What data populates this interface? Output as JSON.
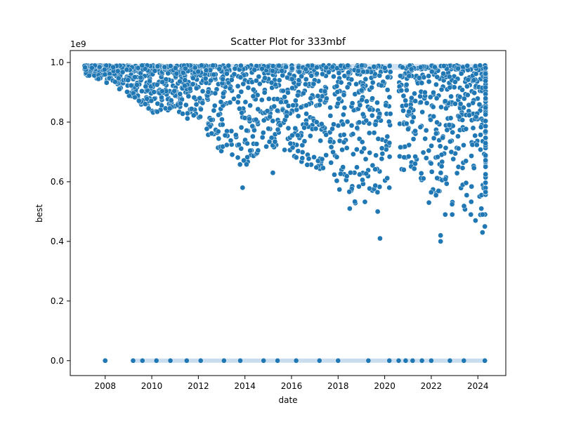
{
  "chart_data": {
    "type": "scatter",
    "title": "Scatter Plot for 333mbf",
    "xlabel": "date",
    "ylabel": "best",
    "y_scale_label": "1e9",
    "xlim": [
      2006.5,
      2025.2
    ],
    "ylim": [
      -50000000,
      1040000000
    ],
    "xticks": [
      2008,
      2010,
      2012,
      2014,
      2016,
      2018,
      2020,
      2022,
      2024
    ],
    "xtick_labels": [
      "2008",
      "2010",
      "2012",
      "2014",
      "2016",
      "2018",
      "2020",
      "2022",
      "2024"
    ],
    "yticks": [
      0,
      200000000,
      400000000,
      600000000,
      800000000,
      1000000000
    ],
    "ytick_labels": [
      "0.0",
      "0.2",
      "0.4",
      "0.6",
      "0.8",
      "1.0"
    ],
    "grid": false,
    "marker_color": "#1f77b4",
    "upper_band": [
      {
        "year": 2007.1,
        "low": 960000000
      },
      {
        "year": 2008,
        "low": 930000000
      },
      {
        "year": 2009,
        "low": 890000000
      },
      {
        "year": 2010,
        "low": 830000000
      },
      {
        "year": 2011,
        "low": 840000000
      },
      {
        "year": 2012,
        "low": 780000000
      },
      {
        "year": 2013,
        "low": 700000000
      },
      {
        "year": 2014,
        "low": 640000000
      },
      {
        "year": 2015,
        "low": 720000000
      },
      {
        "year": 2016,
        "low": 690000000
      },
      {
        "year": 2017,
        "low": 630000000
      },
      {
        "year": 2018,
        "low": 570000000
      },
      {
        "year": 2019,
        "low": 510000000
      },
      {
        "year": 2020,
        "low": 580000000
      },
      {
        "year": 2021,
        "low": 650000000
      },
      {
        "year": 2022,
        "low": 560000000
      },
      {
        "year": 2023,
        "low": 520000000
      },
      {
        "year": 2024,
        "low": 480000000
      }
    ],
    "outliers": [
      {
        "x": 2013.9,
        "y": 580000000
      },
      {
        "x": 2015.2,
        "y": 630000000
      },
      {
        "x": 2018.5,
        "y": 510000000
      },
      {
        "x": 2019.7,
        "y": 500000000
      },
      {
        "x": 2019.8,
        "y": 410000000
      },
      {
        "x": 2020.2,
        "y": 580000000
      },
      {
        "x": 2021.9,
        "y": 530000000
      },
      {
        "x": 2022.4,
        "y": 420000000
      },
      {
        "x": 2022.4,
        "y": 400000000
      },
      {
        "x": 2022.6,
        "y": 490000000
      },
      {
        "x": 2022.9,
        "y": 490000000
      },
      {
        "x": 2023.7,
        "y": 490000000
      },
      {
        "x": 2023.9,
        "y": 470000000
      },
      {
        "x": 2024.2,
        "y": 430000000
      },
      {
        "x": 2024.3,
        "y": 450000000
      },
      {
        "x": 2024.2,
        "y": 490000000
      }
    ],
    "zero_band": {
      "x_start": 2009.1,
      "x_end": 2024.3,
      "y": 0
    },
    "zero_points": [
      2008,
      2009.2,
      2009.6,
      2010.2,
      2010.8,
      2011.5,
      2012.1,
      2013.1,
      2013.8,
      2014.8,
      2015.4,
      2016.2,
      2017.2,
      2018,
      2019.3,
      2020.2,
      2020.6,
      2020.9,
      2021.2,
      2021.6,
      2022,
      2022.8,
      2023.4,
      2024.3
    ]
  }
}
